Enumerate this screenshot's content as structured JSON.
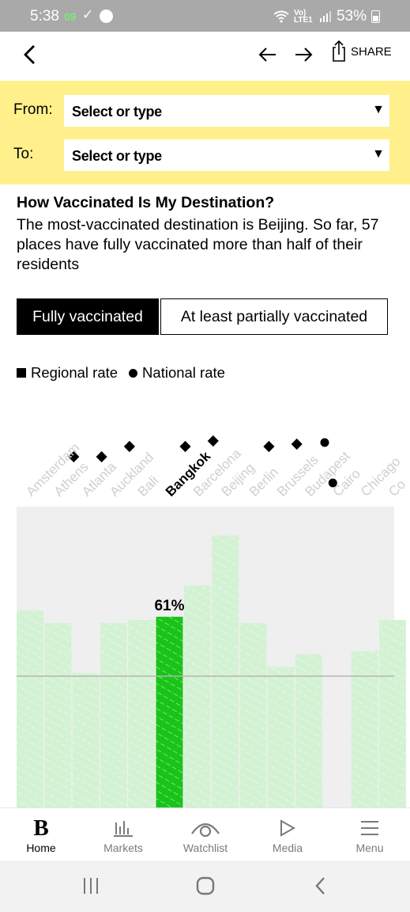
{
  "status_bar": {
    "time": "5:38",
    "badge": "09",
    "battery": "53%",
    "network": "Vo) LTE1"
  },
  "toolbar": {
    "share_label": "SHARE"
  },
  "selectors": {
    "from_label": "From:",
    "from_value": "Select or type",
    "to_label": "To:",
    "to_value": "Select or type"
  },
  "header": {
    "title": "How Vaccinated Is My Destination?",
    "subtitle": "The most-vaccinated destination is Beijing. So far, 57 places have fully vaccinated more than half of their residents"
  },
  "tabs": [
    {
      "label": "Fully vaccinated",
      "active": true
    },
    {
      "label": "At least partially vaccinated",
      "active": false
    }
  ],
  "legend": {
    "regional": "Regional rate",
    "national": "National rate"
  },
  "chart_data": {
    "type": "bar",
    "categories": [
      "Amsterdam",
      "Athens",
      "Atlanta",
      "Auckland",
      "Bali",
      "Bangkok",
      "Barcelona",
      "Beijing",
      "Berlin",
      "Brussels",
      "Budapest",
      "Cairo",
      "Chicago",
      "Co"
    ],
    "values": [
      63,
      59,
      43,
      59,
      60,
      61,
      71,
      87,
      59,
      45,
      49,
      0,
      50,
      60
    ],
    "markers": [
      "none",
      "diamond",
      "diamond",
      "diamond",
      "none",
      "diamond",
      "diamond",
      "none",
      "diamond",
      "diamond",
      "circle",
      "circle",
      "none",
      "none"
    ],
    "highlight": "Bangkok",
    "highlight_label": "61%",
    "colors": {
      "bar": "#d3f2d3",
      "highlight": "#19c419",
      "plot_bg": "#efefef",
      "reference": "#b5b5b5"
    }
  },
  "bottom_nav": {
    "items": [
      {
        "label": "Home",
        "icon": "home-b-icon",
        "active": true
      },
      {
        "label": "Markets",
        "icon": "markets-icon",
        "active": false
      },
      {
        "label": "Watchlist",
        "icon": "eye-icon",
        "active": false
      },
      {
        "label": "Media",
        "icon": "play-icon",
        "active": false
      },
      {
        "label": "Menu",
        "icon": "menu-icon",
        "active": false
      }
    ]
  }
}
